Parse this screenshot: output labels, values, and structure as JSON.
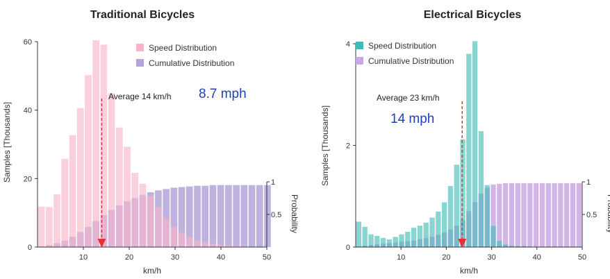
{
  "chart_data": [
    {
      "type": "bar",
      "title": "Traditional Bicycles",
      "xlabel": "km/h",
      "ylabel": "Samples [Thousands]",
      "y2label": "Probability",
      "xlim": [
        0,
        50
      ],
      "ylim": [
        0,
        60
      ],
      "y2lim": [
        0,
        1
      ],
      "xticks": [
        10,
        20,
        30,
        40,
        50
      ],
      "yticks": [
        0,
        20,
        40,
        60
      ],
      "y2ticks": [
        0.5,
        1
      ],
      "legend": "top-right",
      "bin_width": 1.7,
      "series": [
        {
          "name": "Speed Distribution",
          "color": "#f9b3c8",
          "values": [
            11.8,
            11.7,
            15.4,
            25.8,
            32.7,
            40.6,
            50.2,
            60.4,
            59.1,
            45.0,
            34.9,
            29.3,
            21.7,
            18.5,
            14.9,
            11.6,
            8.3,
            6.0,
            4.2,
            3.0,
            2.0,
            1.4,
            0.9,
            0.6,
            0.4,
            0.3,
            0.2,
            0.1,
            0.1,
            0.1
          ]
        },
        {
          "name": "Cumulative Distribution",
          "color": "#b5a4d9",
          "values": [
            0.01,
            0.03,
            0.06,
            0.1,
            0.16,
            0.23,
            0.31,
            0.4,
            0.49,
            0.57,
            0.64,
            0.7,
            0.75,
            0.8,
            0.84,
            0.87,
            0.89,
            0.91,
            0.92,
            0.93,
            0.94,
            0.94,
            0.95,
            0.95,
            0.95,
            0.95,
            0.95,
            0.95,
            0.95,
            0.95
          ]
        }
      ],
      "annotations": [
        {
          "text": "Average 14 km/h",
          "x": 14
        },
        {
          "text": "8.7 mph",
          "color": "#1f3fbf"
        }
      ]
    },
    {
      "type": "bar",
      "title": "Electrical Bicycles",
      "xlabel": "km/h",
      "ylabel": "Samples [Thousands]",
      "y2label": "Probability",
      "xlim": [
        0,
        50
      ],
      "ylim": [
        0,
        4
      ],
      "y2lim": [
        0,
        1
      ],
      "xticks": [
        10,
        20,
        30,
        40,
        50
      ],
      "yticks": [
        0,
        2,
        4
      ],
      "y2ticks": [
        0.5,
        1
      ],
      "legend": "top-right",
      "bin_width": 1.35,
      "series": [
        {
          "name": "Speed Distribution",
          "color": "#3fbcb8",
          "values": [
            0.5,
            0.4,
            0.25,
            0.22,
            0.18,
            0.15,
            0.2,
            0.25,
            0.3,
            0.38,
            0.42,
            0.48,
            0.58,
            0.7,
            0.88,
            1.2,
            1.62,
            2.12,
            3.8,
            4.05,
            2.28,
            1.22,
            0.42,
            0.12,
            0.05,
            0.03,
            0.02,
            0.02,
            0.01,
            0.01,
            0.01,
            0.01,
            0.01,
            0.01,
            0.01,
            0.01,
            0.01
          ]
        },
        {
          "name": "Cumulative Distribution",
          "color": "#c9a8e2",
          "values": [
            0.01,
            0.02,
            0.03,
            0.04,
            0.05,
            0.06,
            0.07,
            0.08,
            0.09,
            0.1,
            0.12,
            0.14,
            0.16,
            0.19,
            0.22,
            0.27,
            0.33,
            0.42,
            0.55,
            0.69,
            0.82,
            0.91,
            0.96,
            0.97,
            0.98,
            0.98,
            0.98,
            0.98,
            0.98,
            0.98,
            0.98,
            0.98,
            0.98,
            0.98,
            0.98,
            0.98,
            0.98
          ]
        }
      ],
      "annotations": [
        {
          "text": "Average 23 km/h",
          "x": 23.5
        },
        {
          "text": "14 mph",
          "color": "#1f3fbf"
        }
      ]
    }
  ]
}
